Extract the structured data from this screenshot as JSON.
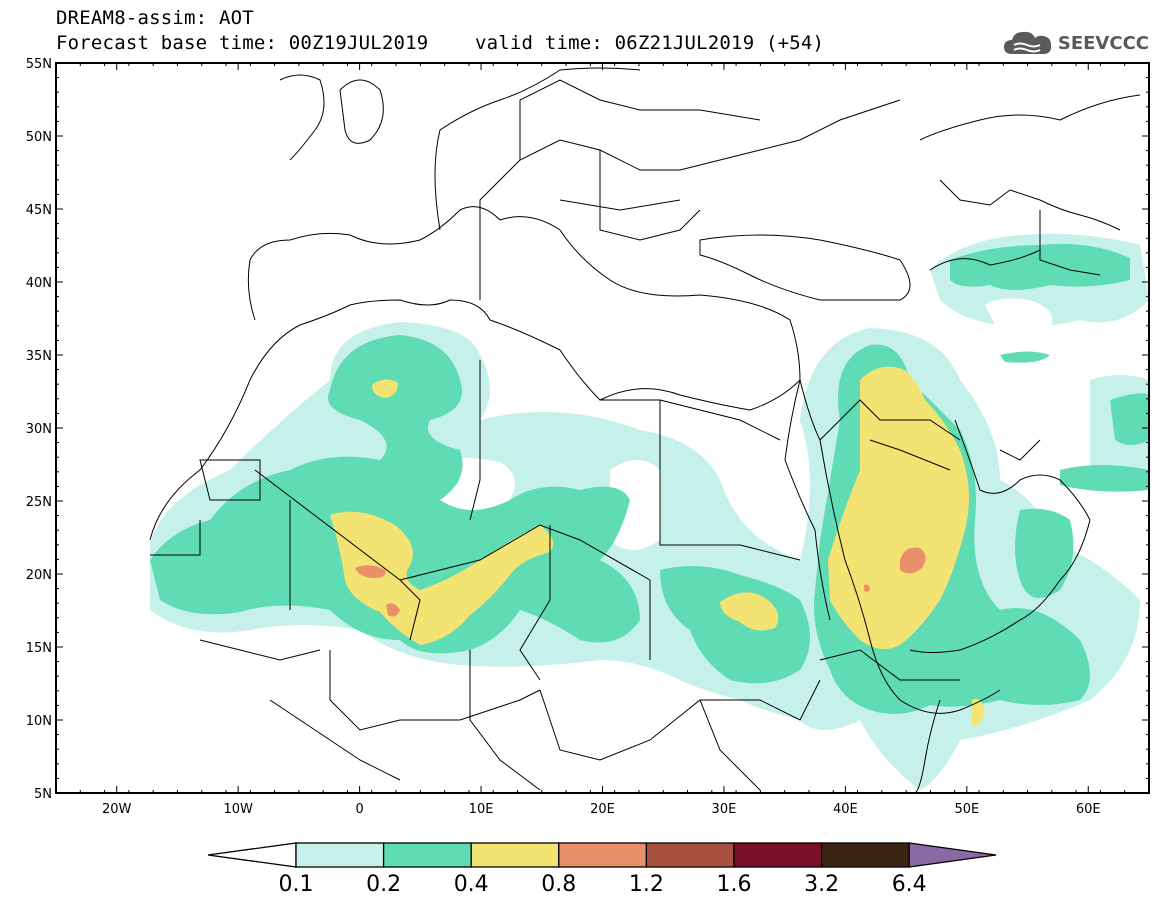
{
  "header": {
    "line1": "DREAM8-assim: AOT",
    "line2": "Forecast base time: 00Z19JUL2019    valid time: 06Z21JUL2019 (+54)"
  },
  "logo": {
    "text": "SEEVCCC",
    "icon": "cloud-icon"
  },
  "map": {
    "lon_range": [
      -25,
      65
    ],
    "lat_range": [
      5,
      55
    ],
    "lat_labels": [
      "55N",
      "50N",
      "45N",
      "40N",
      "35N",
      "30N",
      "25N",
      "20N",
      "15N",
      "10N",
      "5N"
    ],
    "lat_values": [
      55,
      50,
      45,
      40,
      35,
      30,
      25,
      20,
      15,
      10,
      5
    ],
    "lon_labels": [
      "20W",
      "10W",
      "0",
      "10E",
      "20E",
      "30E",
      "40E",
      "50E",
      "60E"
    ],
    "lon_values": [
      -20,
      -10,
      0,
      10,
      20,
      30,
      40,
      50,
      60
    ]
  },
  "colorbar": {
    "labels": [
      "0.1",
      "0.2",
      "0.4",
      "0.8",
      "1.2",
      "1.6",
      "3.2",
      "6.4"
    ],
    "colors": [
      "#c6f0ea",
      "#5fdcb4",
      "#f2e373",
      "#e9906a",
      "#a8513f",
      "#7a0f28",
      "#3b2414",
      "#8a6aa4"
    ],
    "under_color": "#ffffff",
    "over_color": "#8a6aa4"
  }
}
